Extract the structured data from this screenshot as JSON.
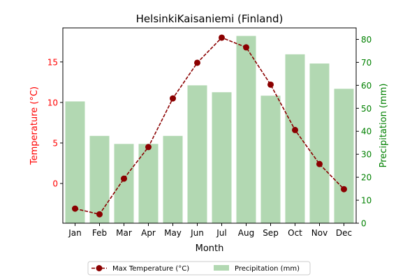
{
  "chart_data": {
    "type": "bar+line",
    "title": "HelsinkiKaisaniemi (Finland)",
    "xlabel": "Month",
    "ylabel_left": "Temperature (°C)",
    "ylabel_right": "Precipitation (mm)",
    "categories": [
      "Jan",
      "Feb",
      "Mar",
      "Apr",
      "May",
      "Jun",
      "Jul",
      "Aug",
      "Sep",
      "Oct",
      "Nov",
      "Dec"
    ],
    "y_left_lim": [
      -4.9,
      19.2
    ],
    "y_left_ticks": [
      0,
      5,
      10,
      15
    ],
    "y_right_lim": [
      0,
      85
    ],
    "y_right_ticks": [
      0,
      10,
      20,
      30,
      40,
      50,
      60,
      70,
      80
    ],
    "series": [
      {
        "name": "Max Temperature (°C)",
        "kind": "line",
        "axis": "left",
        "color": "#8b0000",
        "values": [
          -3.1,
          -3.8,
          0.6,
          4.5,
          10.5,
          14.9,
          18.0,
          16.8,
          12.2,
          6.6,
          2.4,
          -0.7
        ]
      },
      {
        "name": "Precipitation (mm)",
        "kind": "bar",
        "axis": "right",
        "color": "#b2d8b2",
        "values": [
          53,
          38,
          34.5,
          34.5,
          38,
          60,
          57,
          81.5,
          55.5,
          73.5,
          69.5,
          58.5
        ]
      }
    ],
    "legend_position": "bottom-center",
    "colors": {
      "left_axis": "#ff0000",
      "right_axis": "#008000"
    }
  }
}
